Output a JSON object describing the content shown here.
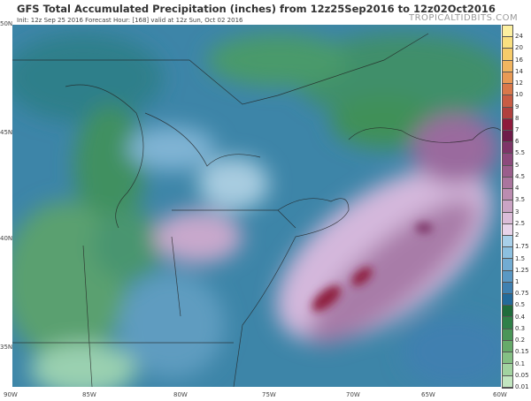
{
  "title": "GFS Total Accumulated Precipitation (inches) from 12z25Sep2016 to 12z02Oct2016",
  "subtitle": "Init: 12z Sep 25 2016   Forecast Hour: [168]   valid at 12z Sun, Oct 02 2016",
  "watermark": "TROPICALTIDBITS.COM",
  "lat_labels": [
    "50N",
    "45N",
    "40N",
    "35N"
  ],
  "lon_labels": [
    "90W",
    "85W",
    "80W",
    "75W",
    "70W",
    "65W",
    "60W"
  ],
  "colorbar": {
    "labels": [
      "24",
      "20",
      "16",
      "14",
      "12",
      "10",
      "9",
      "8",
      "7",
      "6",
      "5.5",
      "5",
      "4.5",
      "4",
      "3.5",
      "3",
      "2.5",
      "2",
      "1.75",
      "1.5",
      "1.25",
      "1",
      "0.75",
      "0.5",
      "0.4",
      "0.3",
      "0.2",
      "0.15",
      "0.1",
      "0.05",
      "0.01"
    ],
    "colors": [
      "#fdf0a0",
      "#fae080",
      "#f7cc6a",
      "#f2b560",
      "#e99a55",
      "#d9784a",
      "#c85c44",
      "#b0403e",
      "#8e1a3c",
      "#6e1c4a",
      "#7e3568",
      "#8c4a7c",
      "#9a5e8c",
      "#aa759e",
      "#bb8cb0",
      "#caa4c4",
      "#dbbcd8",
      "#e8d4ea",
      "#a8d0ea",
      "#8cc0e0",
      "#72acd2",
      "#5a98c4",
      "#3f80b0",
      "#236a9a",
      "#1f6c3c",
      "#2f8048",
      "#4a9658",
      "#66aa6a",
      "#84bf84",
      "#a2d3a0",
      "#c2e6c0"
    ]
  }
}
